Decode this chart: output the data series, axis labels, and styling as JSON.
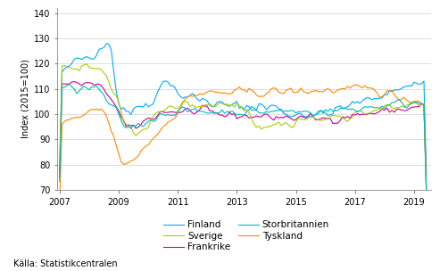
{
  "ylabel": "Index (2015=100)",
  "ylim": [
    70,
    142
  ],
  "yticks": [
    70,
    80,
    90,
    100,
    110,
    120,
    130,
    140
  ],
  "xlim": [
    2006.92,
    2019.58
  ],
  "xticks": [
    2007,
    2009,
    2011,
    2013,
    2015,
    2017,
    2019
  ],
  "source_text": "Källa: Statistikcentralen",
  "colors": {
    "Finland": "#00aaff",
    "Frankrike": "#cc0099",
    "Tyskland": "#ff8800",
    "Sverige": "#aacc00",
    "Storbritannien": "#00bbbb"
  },
  "linewidth": 0.8
}
